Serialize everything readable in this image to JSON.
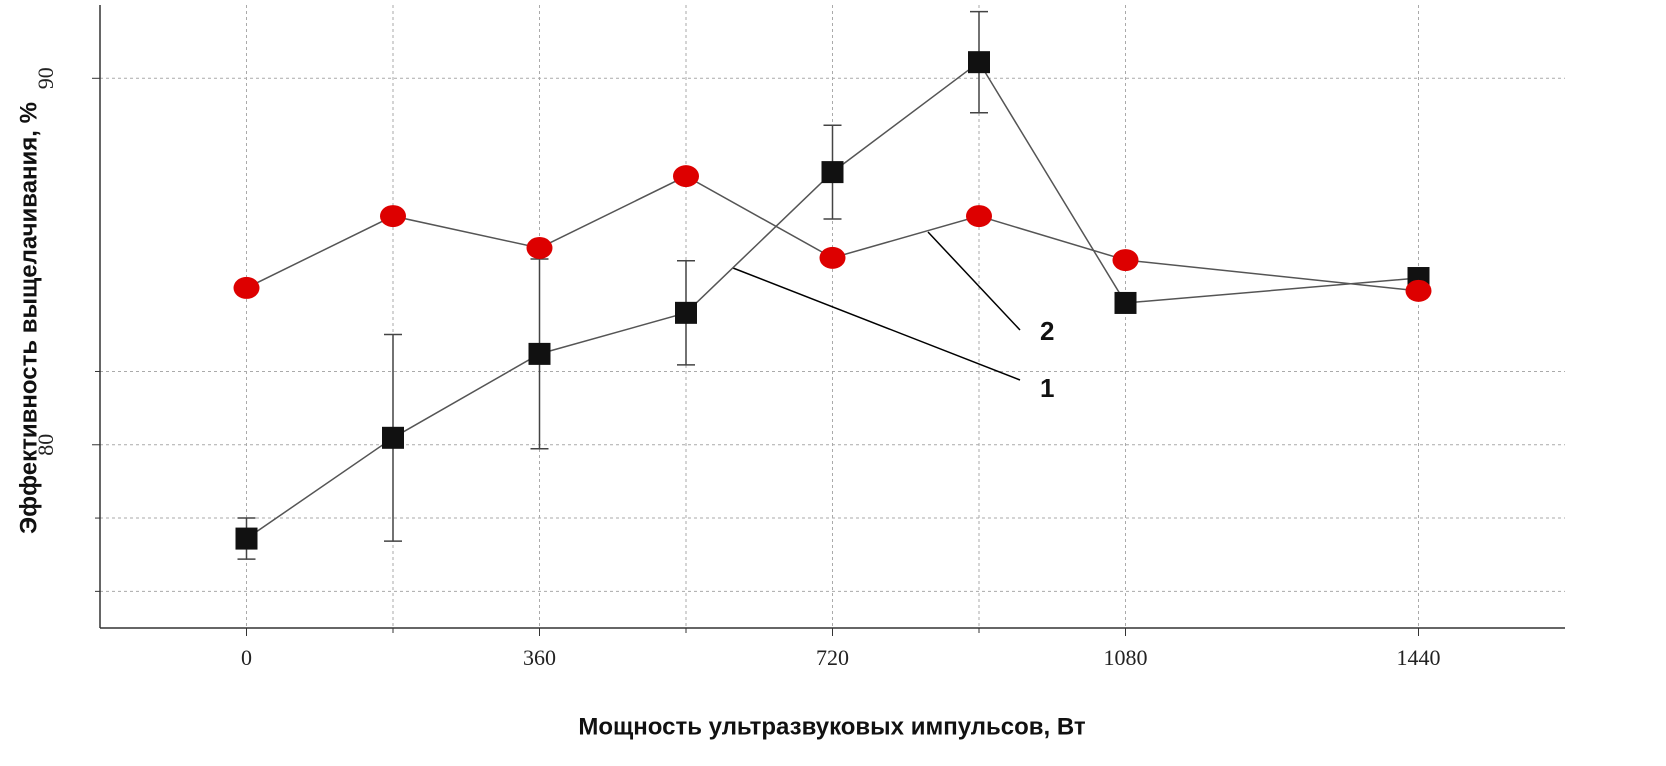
{
  "chart_data": {
    "type": "line",
    "x_label": "Мощность ультразвуковых импульсов, Вт",
    "y_label": "Эффективность выщелачивания, %",
    "x": [
      0,
      180,
      360,
      540,
      720,
      900,
      1080,
      1440
    ],
    "series": [
      {
        "name": "1",
        "color": "#111111",
        "marker": "square",
        "values": [
          77.44,
          80.19,
          82.48,
          83.6,
          87.44,
          90.44,
          83.87,
          84.55
        ],
        "errors": [
          0.56,
          2.82,
          2.59,
          1.42,
          1.28,
          1.38,
          null,
          null
        ]
      },
      {
        "name": "2",
        "color": "#dd0000",
        "marker": "circle",
        "values": [
          84.28,
          86.24,
          85.37,
          87.33,
          85.1,
          86.24,
          85.04,
          84.2
        ]
      }
    ],
    "xlim": [
      -180,
      1620
    ],
    "ylim": [
      75,
      92
    ],
    "xticks": [
      0,
      360,
      720,
      1080,
      1440
    ],
    "yticks": [
      80,
      90
    ],
    "minor_xticks": [
      180,
      540,
      900
    ],
    "minor_yticks": [
      76,
      78,
      82
    ],
    "grid": true,
    "annotations": [
      {
        "text": "2"
      },
      {
        "text": "1"
      }
    ]
  }
}
